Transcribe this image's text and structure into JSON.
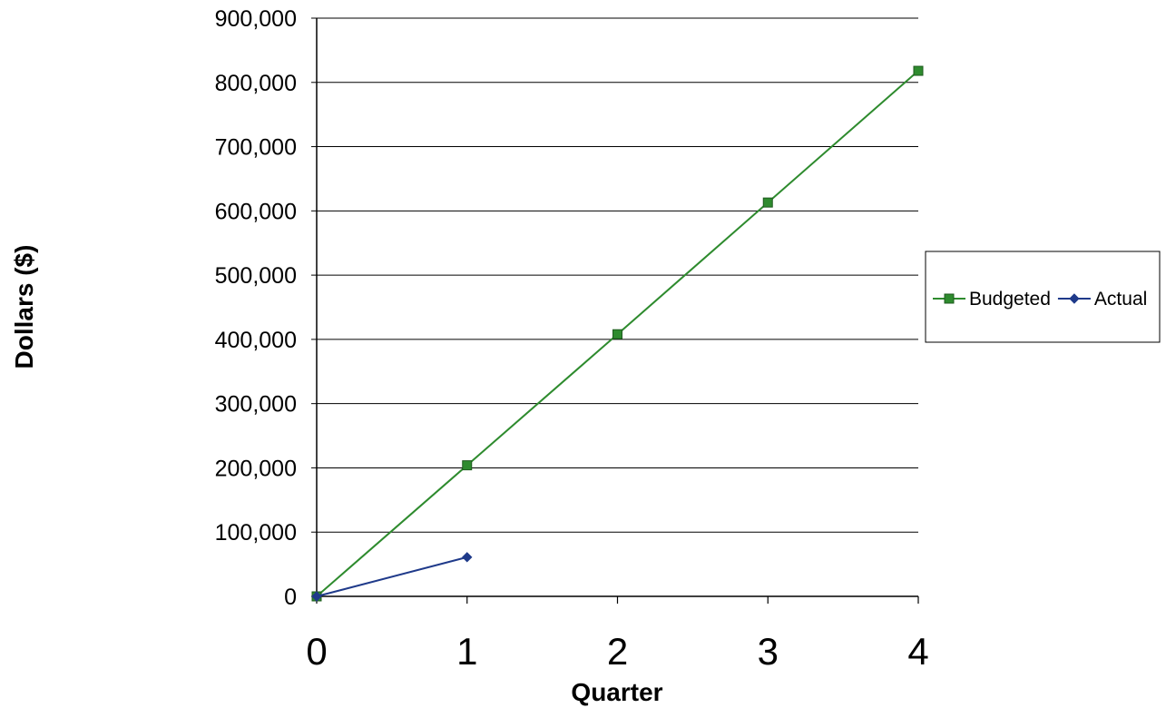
{
  "chart_data": {
    "type": "line",
    "xlabel": "Quarter",
    "ylabel": "Dollars ($)",
    "xlim": [
      0,
      4
    ],
    "ylim": [
      0,
      900000
    ],
    "x_ticks": [
      "0",
      "1",
      "2",
      "3",
      "4"
    ],
    "y_ticks": [
      "0",
      "100,000",
      "200,000",
      "300,000",
      "400,000",
      "500,000",
      "600,000",
      "700,000",
      "800,000",
      "900,000"
    ],
    "grid": "horizontal",
    "legend_position": "right",
    "series": [
      {
        "name": "Budgeted",
        "color": "#2e8b2e",
        "marker": "square",
        "x": [
          0,
          1,
          2,
          3,
          4
        ],
        "y": [
          0,
          204000,
          408000,
          613000,
          818000
        ]
      },
      {
        "name": "Actual",
        "color": "#1f3a8a",
        "marker": "diamond",
        "x": [
          0,
          1
        ],
        "y": [
          0,
          61000
        ]
      }
    ]
  }
}
